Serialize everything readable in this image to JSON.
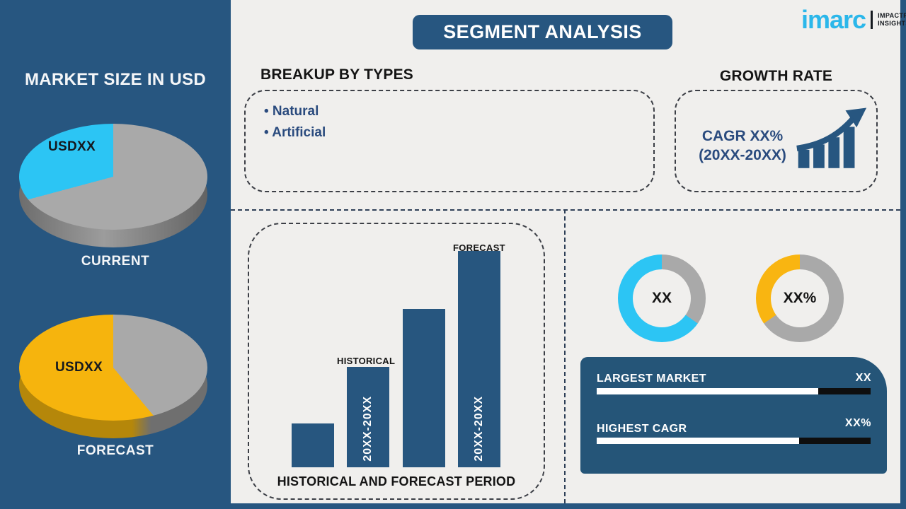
{
  "title": "SEGMENT ANALYSIS",
  "brand": {
    "logo": "imarc",
    "tagline_line1": "IMPACTFUL",
    "tagline_line2": "INSIGHTS"
  },
  "sidebar": {
    "heading": "MARKET SIZE IN USD",
    "pies": [
      {
        "value": "USDXX",
        "caption": "CURRENT"
      },
      {
        "value": "USDXX",
        "caption": "FORECAST"
      }
    ]
  },
  "breakup": {
    "heading": "BREAKUP BY TYPES",
    "items": [
      "• Natural",
      "• Artificial"
    ]
  },
  "growth": {
    "heading": "GROWTH RATE",
    "line1": "CAGR XX%",
    "line2": "(20XX-20XX)"
  },
  "period": {
    "hist_label": "HISTORICAL",
    "fcst_label": "FORECAST",
    "hist_bar_text": "20XX-20XX",
    "fcst_bar_text": "20XX-20XX",
    "caption": "HISTORICAL AND FORECAST PERIOD"
  },
  "donuts": [
    {
      "label": "XX"
    },
    {
      "label": "XX%"
    }
  ],
  "stats": [
    {
      "label": "LARGEST MARKET",
      "value": "XX",
      "fill_pct": 81
    },
    {
      "label": "HIGHEST CAGR",
      "value": "XX%",
      "fill_pct": 74
    }
  ],
  "colors": {
    "navy": "#275680",
    "cyan": "#2cc5f4",
    "yellow": "#f6b40d",
    "gray": "#a9a9a9",
    "background": "#f0efed"
  },
  "chart_data": [
    {
      "type": "pie",
      "name": "current-market-size-pie",
      "title": "CURRENT",
      "center_label": "USDXX",
      "slices": [
        {
          "label": "highlighted-segment",
          "value_pct": 29,
          "color": "#2cc5f4"
        },
        {
          "label": "rest-of-market",
          "value_pct": 71,
          "color": "#a9a9a9"
        }
      ],
      "slice_deg": 105
    },
    {
      "type": "pie",
      "name": "forecast-market-size-pie",
      "title": "FORECAST",
      "center_label": "USDXX",
      "slices": [
        {
          "label": "highlighted-segment",
          "value_pct": 61,
          "color": "#f6b40d"
        },
        {
          "label": "rest-of-market",
          "value_pct": 39,
          "color": "#a9a9a9"
        }
      ],
      "slice_deg": 220
    },
    {
      "type": "bar",
      "name": "historical-and-forecast-period-chart",
      "title": "HISTORICAL AND FORECAST PERIOD",
      "categories": [
        "",
        "HISTORICAL",
        "",
        "FORECAST"
      ],
      "values": [
        62,
        142,
        224,
        306
      ],
      "bar_texts": [
        "",
        "20XX-20XX",
        "",
        "20XX-20XX"
      ],
      "bar_color": "#27567f",
      "ylim": [
        0,
        320
      ]
    },
    {
      "type": "donut",
      "name": "largest-market-donut",
      "center_label": "XX",
      "slices": [
        {
          "label": "highlight",
          "value_pct": 65,
          "color": "#2cc5f4"
        },
        {
          "label": "rest",
          "value_pct": 35,
          "color": "#a9a9a9"
        }
      ],
      "slice_deg": 235
    },
    {
      "type": "donut",
      "name": "highest-cagr-donut",
      "center_label": "XX%",
      "slices": [
        {
          "label": "highlight",
          "value_pct": 35,
          "color": "#f9b511"
        },
        {
          "label": "rest",
          "value_pct": 65,
          "color": "#a9a9a9"
        }
      ],
      "slice_deg": 125
    }
  ]
}
